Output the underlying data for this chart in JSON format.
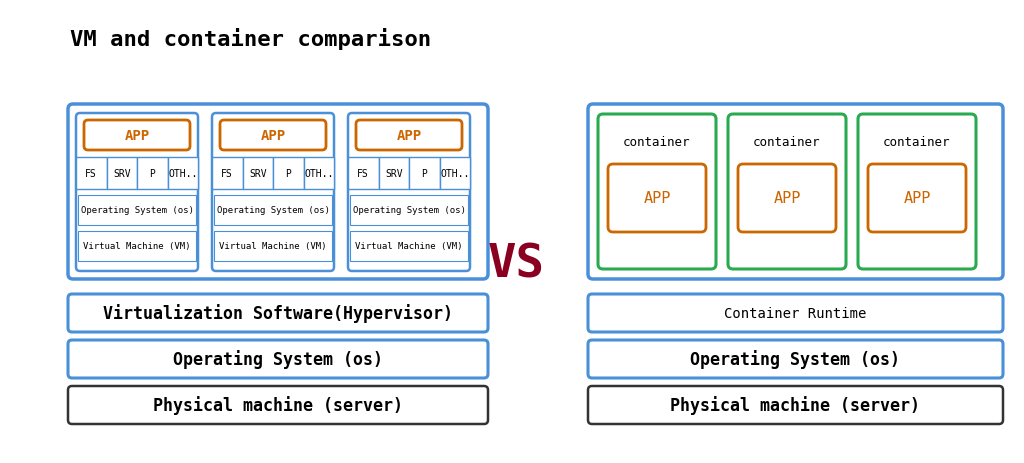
{
  "title": "VM and container comparison",
  "title_fontsize": 16,
  "bg_color": "#ffffff",
  "blue_border": "#4a90d9",
  "orange_border": "#cc6600",
  "green_border": "#2aaa50",
  "black_border": "#333333",
  "dark_red": "#8b0020",
  "vs_text": "VS",
  "vs_fontsize": 34,
  "vm_layers": [
    {
      "label": "Virtualization Software(Hypervisor)",
      "border": "#4a90d9",
      "lw": 2.2,
      "fontsize": 12,
      "bold": true
    },
    {
      "label": "Operating System (os)",
      "border": "#4a90d9",
      "lw": 2.2,
      "fontsize": 12,
      "bold": true
    },
    {
      "label": "Physical machine (server)",
      "border": "#333333",
      "lw": 1.8,
      "fontsize": 12,
      "bold": true
    }
  ],
  "container_layers": [
    {
      "label": "Container Runtime",
      "border": "#4a90d9",
      "lw": 2.2,
      "fontsize": 10,
      "bold": false
    },
    {
      "label": "Operating System (os)",
      "border": "#4a90d9",
      "lw": 2.2,
      "fontsize": 12,
      "bold": true
    },
    {
      "label": "Physical machine (server)",
      "border": "#333333",
      "lw": 1.8,
      "fontsize": 12,
      "bold": true
    }
  ],
  "vm_mini_labels": [
    "FS",
    "SRV",
    "P",
    "OTH.."
  ],
  "app_label": "APP",
  "container_label": "container",
  "note_fontsize": 7
}
